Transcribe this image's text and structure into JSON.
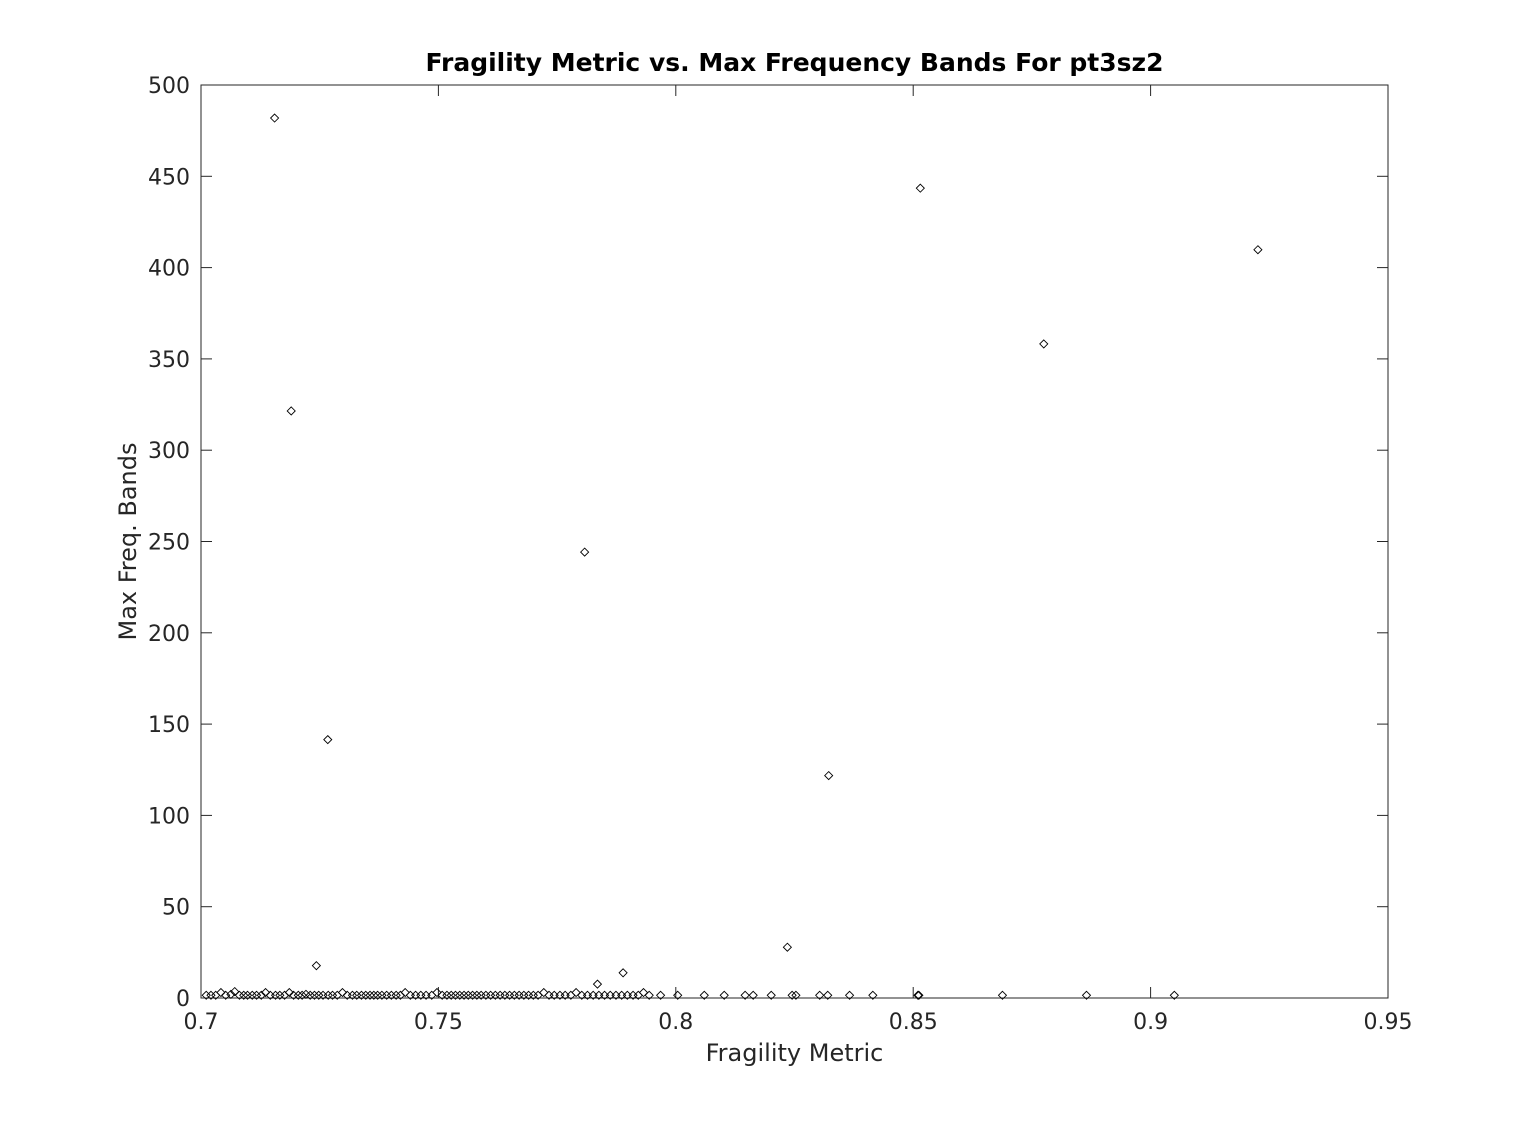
{
  "chart_data": {
    "type": "scatter",
    "title": "Fragility Metric vs. Max Frequency Bands For pt3sz2",
    "xlabel": "Fragility Metric",
    "ylabel": "Max Freq. Bands",
    "xlim": [
      0.7,
      0.95
    ],
    "ylim": [
      0,
      500
    ],
    "xticks": [
      0.7,
      0.75,
      0.8,
      0.85,
      0.9,
      0.95
    ],
    "xtick_labels": [
      "0.7",
      "0.75",
      "0.8",
      "0.85",
      "0.9",
      "0.95"
    ],
    "yticks": [
      0,
      50,
      100,
      150,
      200,
      250,
      300,
      350,
      400,
      450,
      500
    ],
    "ytick_labels": [
      "0",
      "50",
      "100",
      "150",
      "200",
      "250",
      "300",
      "350",
      "400",
      "450",
      "500"
    ],
    "grid": false,
    "legend": "none",
    "marker": "diamond",
    "marker_color": "#000000",
    "series": [
      {
        "points": [
          [
            0.7155,
            481.9
          ],
          [
            0.8515,
            443.5
          ],
          [
            0.9226,
            409.8
          ],
          [
            0.8775,
            358.2
          ],
          [
            0.719,
            321.5
          ],
          [
            0.7808,
            244.2
          ],
          [
            0.7267,
            141.5
          ],
          [
            0.8322,
            121.8
          ],
          [
            0.8235,
            27.8
          ],
          [
            0.7243,
            17.7
          ],
          [
            0.7889,
            13.8
          ],
          [
            0.7835,
            7.6
          ],
          [
            0.7011,
            1.5
          ],
          [
            0.7021,
            1.5
          ],
          [
            0.7031,
            1.5
          ],
          [
            0.7042,
            3.0
          ],
          [
            0.7052,
            1.5
          ],
          [
            0.7063,
            2.0
          ],
          [
            0.7071,
            3.5
          ],
          [
            0.7081,
            1.5
          ],
          [
            0.709,
            1.5
          ],
          [
            0.7098,
            1.5
          ],
          [
            0.7108,
            1.5
          ],
          [
            0.7117,
            1.5
          ],
          [
            0.7127,
            1.5
          ],
          [
            0.7136,
            3.0
          ],
          [
            0.7146,
            1.5
          ],
          [
            0.7157,
            1.5
          ],
          [
            0.7166,
            1.5
          ],
          [
            0.7176,
            1.5
          ],
          [
            0.7186,
            3.0
          ],
          [
            0.7195,
            1.5
          ],
          [
            0.7205,
            1.5
          ],
          [
            0.7213,
            1.5
          ],
          [
            0.7221,
            2.0
          ],
          [
            0.723,
            1.5
          ],
          [
            0.7239,
            1.5
          ],
          [
            0.7248,
            1.5
          ],
          [
            0.7257,
            1.5
          ],
          [
            0.7268,
            1.5
          ],
          [
            0.7277,
            1.5
          ],
          [
            0.7287,
            1.5
          ],
          [
            0.7298,
            3.0
          ],
          [
            0.7308,
            1.5
          ],
          [
            0.7319,
            1.5
          ],
          [
            0.7328,
            1.5
          ],
          [
            0.7338,
            1.5
          ],
          [
            0.7347,
            1.5
          ],
          [
            0.7356,
            1.5
          ],
          [
            0.7364,
            1.5
          ],
          [
            0.7372,
            1.5
          ],
          [
            0.7381,
            1.5
          ],
          [
            0.7391,
            1.5
          ],
          [
            0.7401,
            1.5
          ],
          [
            0.7411,
            1.5
          ],
          [
            0.742,
            1.5
          ],
          [
            0.743,
            3.0
          ],
          [
            0.7441,
            1.5
          ],
          [
            0.7452,
            1.5
          ],
          [
            0.7463,
            1.5
          ],
          [
            0.7474,
            1.5
          ],
          [
            0.7486,
            1.5
          ],
          [
            0.7497,
            3.0
          ],
          [
            0.7508,
            1.5
          ],
          [
            0.7518,
            1.5
          ],
          [
            0.7527,
            1.5
          ],
          [
            0.7536,
            1.5
          ],
          [
            0.7545,
            1.5
          ],
          [
            0.7554,
            1.5
          ],
          [
            0.7563,
            1.5
          ],
          [
            0.7572,
            1.5
          ],
          [
            0.7581,
            1.5
          ],
          [
            0.759,
            1.5
          ],
          [
            0.76,
            1.5
          ],
          [
            0.761,
            1.5
          ],
          [
            0.762,
            1.5
          ],
          [
            0.763,
            1.5
          ],
          [
            0.764,
            1.5
          ],
          [
            0.765,
            1.5
          ],
          [
            0.766,
            1.5
          ],
          [
            0.767,
            1.5
          ],
          [
            0.768,
            1.5
          ],
          [
            0.769,
            1.5
          ],
          [
            0.77,
            1.5
          ],
          [
            0.771,
            1.5
          ],
          [
            0.7722,
            3.0
          ],
          [
            0.7733,
            1.5
          ],
          [
            0.7744,
            1.5
          ],
          [
            0.7756,
            1.5
          ],
          [
            0.7767,
            1.5
          ],
          [
            0.7779,
            1.5
          ],
          [
            0.779,
            3.0
          ],
          [
            0.7802,
            1.5
          ],
          [
            0.7814,
            1.5
          ],
          [
            0.7826,
            1.5
          ],
          [
            0.7838,
            1.5
          ],
          [
            0.785,
            1.5
          ],
          [
            0.7862,
            1.5
          ],
          [
            0.7874,
            1.5
          ],
          [
            0.7886,
            1.5
          ],
          [
            0.7898,
            1.5
          ],
          [
            0.791,
            1.5
          ],
          [
            0.7921,
            1.5
          ],
          [
            0.7932,
            3.0
          ],
          [
            0.7944,
            1.5
          ],
          [
            0.7968,
            1.5
          ],
          [
            0.8004,
            1.5
          ],
          [
            0.806,
            1.5
          ],
          [
            0.8102,
            1.5
          ],
          [
            0.8146,
            1.5
          ],
          [
            0.8163,
            1.5
          ],
          [
            0.8201,
            1.5
          ],
          [
            0.8245,
            1.5
          ],
          [
            0.8253,
            1.5
          ],
          [
            0.8303,
            1.5
          ],
          [
            0.832,
            1.5
          ],
          [
            0.8366,
            1.5
          ],
          [
            0.8415,
            1.5
          ],
          [
            0.851,
            1.5
          ],
          [
            0.8512,
            1.5
          ],
          [
            0.8688,
            1.5
          ],
          [
            0.8865,
            1.5
          ],
          [
            0.905,
            1.5
          ]
        ]
      }
    ]
  }
}
